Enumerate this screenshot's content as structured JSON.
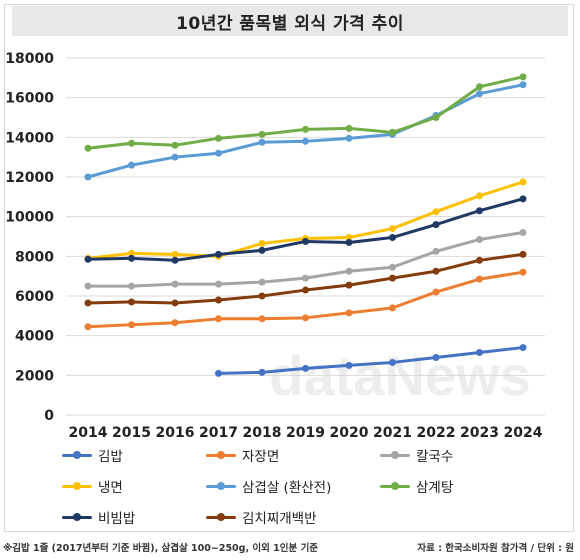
{
  "title": "10년간 품목별 외식 가격 추이",
  "watermark": "dataNews",
  "footnote_left": "※김밥 1줄 (2017년부터 기준 바뀜), 삼겹살 100~250g, 이외 1인분 기준",
  "footnote_right": "자료 : 한국소비자원 참가격 / 단위 : 원",
  "chart_data": {
    "type": "line",
    "x": [
      2014,
      2015,
      2016,
      2017,
      2018,
      2019,
      2020,
      2021,
      2022,
      2023,
      2024
    ],
    "ylim": [
      0,
      18000
    ],
    "yticks": [
      0,
      2000,
      4000,
      6000,
      8000,
      10000,
      12000,
      14000,
      16000,
      18000
    ],
    "grid": true,
    "legend_position": "bottom",
    "series": [
      {
        "name": "김밥",
        "color": "#4472c4",
        "values": [
          null,
          null,
          null,
          2100,
          2150,
          2350,
          2500,
          2650,
          2900,
          3150,
          3400
        ]
      },
      {
        "name": "자장면",
        "color": "#ed7d31",
        "values": [
          4450,
          4550,
          4650,
          4850,
          4850,
          4900,
          5150,
          5400,
          6200,
          6850,
          7200
        ]
      },
      {
        "name": "칼국수",
        "color": "#a5a5a5",
        "values": [
          6500,
          6500,
          6600,
          6600,
          6700,
          6900,
          7250,
          7450,
          8250,
          8850,
          9200
        ]
      },
      {
        "name": "냉면",
        "color": "#ffc000",
        "values": [
          7900,
          8150,
          8100,
          8000,
          8650,
          8900,
          8950,
          9400,
          10250,
          11050,
          11750
        ]
      },
      {
        "name": "삼겹살 (환산전)",
        "color": "#5b9bd5",
        "values": [
          12000,
          12600,
          13000,
          13200,
          13750,
          13800,
          13950,
          14150,
          15100,
          16200,
          16650
        ]
      },
      {
        "name": "삼계탕",
        "color": "#70ad47",
        "values": [
          13450,
          13700,
          13600,
          13950,
          14150,
          14400,
          14450,
          14250,
          15000,
          16550,
          17050
        ]
      },
      {
        "name": "비빔밥",
        "color": "#1f3864",
        "values": [
          7850,
          7900,
          7800,
          8100,
          8300,
          8750,
          8700,
          8950,
          9600,
          10300,
          10900
        ]
      },
      {
        "name": "김치찌개백반",
        "color": "#843c0c",
        "values": [
          5650,
          5700,
          5650,
          5800,
          6000,
          6300,
          6550,
          6900,
          7250,
          7800,
          8100
        ]
      }
    ]
  }
}
